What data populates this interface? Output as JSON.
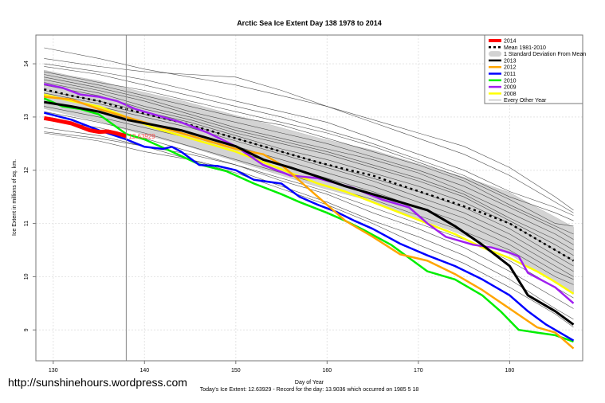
{
  "watermark": "http://sunshinehours.wordpress.com",
  "chart_data": {
    "type": "line",
    "title": "Arctic Sea Ice Extent Day 138 1978 to 2014",
    "xlabel": "Day of Year",
    "ylabel": "Ice Extent in millions of sq. km.",
    "footer": "Today's Ice Extent: 12.63929  - Record for the day: 13.9036 which occurred on 1985 5 18",
    "xlim": [
      128.1,
      188
    ],
    "ylim": [
      8.42,
      14.54
    ],
    "xticks": [
      "130",
      "140",
      "150",
      "160",
      "170",
      "180"
    ],
    "yticks": [
      "9",
      "10",
      "11",
      "12",
      "13",
      "14"
    ],
    "grid": true,
    "legend_position": "top-right",
    "current_day": 138,
    "current_value_label": "12.63929",
    "legend": [
      {
        "label": "2014",
        "color": "#ff0000",
        "style": "thick"
      },
      {
        "label": "Mean 1981-2010",
        "color": "#000000",
        "style": "dotted"
      },
      {
        "label": "1 Standard Deviation From Mean",
        "color": "#d3d3d3",
        "style": "band"
      },
      {
        "label": "2013",
        "color": "#000000",
        "style": "solid"
      },
      {
        "label": "2012",
        "color": "#ffa500",
        "style": "solid"
      },
      {
        "label": "2011",
        "color": "#0000ff",
        "style": "solid"
      },
      {
        "label": "2010",
        "color": "#00ee00",
        "style": "solid"
      },
      {
        "label": "2009",
        "color": "#a020f0",
        "style": "solid"
      },
      {
        "label": "2008",
        "color": "#ffff00",
        "style": "solid"
      },
      {
        "label": "Every Other Year",
        "color": "#555555",
        "style": "thin"
      }
    ],
    "mean": [
      [
        129,
        13.52
      ],
      [
        132,
        13.4
      ],
      [
        135,
        13.3
      ],
      [
        138,
        13.15
      ],
      [
        141,
        13.02
      ],
      [
        144,
        12.9
      ],
      [
        147,
        12.75
      ],
      [
        150,
        12.6
      ],
      [
        153,
        12.45
      ],
      [
        156,
        12.3
      ],
      [
        159,
        12.15
      ],
      [
        162,
        12.02
      ],
      [
        165,
        11.9
      ],
      [
        168,
        11.72
      ],
      [
        171,
        11.55
      ],
      [
        174,
        11.38
      ],
      [
        177,
        11.2
      ],
      [
        180,
        11.0
      ],
      [
        183,
        10.7
      ],
      [
        185,
        10.5
      ],
      [
        187,
        10.3
      ]
    ],
    "sd": [
      0.36,
      0.37,
      0.38,
      0.39,
      0.4,
      0.41,
      0.42,
      0.43,
      0.44,
      0.45,
      0.46,
      0.47,
      0.48,
      0.5,
      0.52,
      0.54,
      0.56,
      0.58,
      0.6,
      0.62,
      0.63
    ],
    "series": [
      {
        "name": "2008",
        "color": "#ffff00",
        "width": 2.5,
        "points": [
          [
            129,
            13.42
          ],
          [
            132,
            13.3
          ],
          [
            135,
            13.2
          ],
          [
            138,
            13.0
          ],
          [
            141,
            12.8
          ],
          [
            144,
            12.65
          ],
          [
            147,
            12.5
          ],
          [
            150,
            12.35
          ],
          [
            153,
            12.15
          ],
          [
            156,
            11.95
          ],
          [
            159,
            11.75
          ],
          [
            162,
            11.6
          ],
          [
            165,
            11.4
          ],
          [
            168,
            11.2
          ],
          [
            171,
            11.0
          ],
          [
            174,
            10.8
          ],
          [
            177,
            10.55
          ],
          [
            180,
            10.35
          ],
          [
            183,
            10.1
          ],
          [
            185,
            9.9
          ],
          [
            187,
            9.68
          ]
        ]
      },
      {
        "name": "2009",
        "color": "#a020f0",
        "width": 2.5,
        "points": [
          [
            129,
            13.62
          ],
          [
            131,
            13.55
          ],
          [
            133,
            13.42
          ],
          [
            135,
            13.38
          ],
          [
            137,
            13.3
          ],
          [
            139,
            13.15
          ],
          [
            141,
            13.05
          ],
          [
            144,
            12.9
          ],
          [
            147,
            12.7
          ],
          [
            150,
            12.45
          ],
          [
            153,
            12.1
          ],
          [
            156,
            11.9
          ],
          [
            159,
            11.85
          ],
          [
            163,
            11.66
          ],
          [
            166,
            11.45
          ],
          [
            169,
            11.3
          ],
          [
            171,
            11.0
          ],
          [
            173,
            10.75
          ],
          [
            176,
            10.6
          ],
          [
            178,
            10.55
          ],
          [
            180,
            10.45
          ],
          [
            181,
            10.38
          ],
          [
            182,
            10.07
          ],
          [
            185,
            9.8
          ],
          [
            187,
            9.5
          ]
        ]
      },
      {
        "name": "2010",
        "color": "#00ee00",
        "width": 2.5,
        "points": [
          [
            129,
            13.35
          ],
          [
            131,
            13.2
          ],
          [
            133,
            13.15
          ],
          [
            135,
            13.05
          ],
          [
            138,
            12.68
          ],
          [
            140,
            12.58
          ],
          [
            143,
            12.35
          ],
          [
            146,
            12.11
          ],
          [
            149,
            11.98
          ],
          [
            152,
            11.75
          ],
          [
            155,
            11.55
          ],
          [
            157,
            11.4
          ],
          [
            160,
            11.2
          ],
          [
            162,
            11.05
          ],
          [
            164,
            10.88
          ],
          [
            167,
            10.6
          ],
          [
            169,
            10.35
          ],
          [
            171,
            10.1
          ],
          [
            174,
            9.95
          ],
          [
            177,
            9.65
          ],
          [
            179,
            9.35
          ],
          [
            181,
            9.0
          ],
          [
            183,
            8.95
          ],
          [
            185,
            8.9
          ],
          [
            187,
            8.78
          ]
        ]
      },
      {
        "name": "2011",
        "color": "#0000ff",
        "width": 2.5,
        "points": [
          [
            129,
            13.08
          ],
          [
            132,
            12.95
          ],
          [
            135,
            12.75
          ],
          [
            138,
            12.58
          ],
          [
            140,
            12.44
          ],
          [
            142,
            12.4
          ],
          [
            143,
            12.44
          ],
          [
            144,
            12.35
          ],
          [
            146,
            12.1
          ],
          [
            148,
            12.08
          ],
          [
            150,
            12.0
          ],
          [
            152,
            11.82
          ],
          [
            155,
            11.75
          ],
          [
            157,
            11.5
          ],
          [
            159,
            11.35
          ],
          [
            161,
            11.22
          ],
          [
            163,
            11.05
          ],
          [
            165,
            10.9
          ],
          [
            168,
            10.62
          ],
          [
            171,
            10.4
          ],
          [
            174,
            10.2
          ],
          [
            177,
            9.95
          ],
          [
            180,
            9.65
          ],
          [
            182,
            9.35
          ],
          [
            184,
            9.1
          ],
          [
            187,
            8.8
          ]
        ]
      },
      {
        "name": "2012",
        "color": "#ffa500",
        "width": 2.5,
        "points": [
          [
            129,
            13.38
          ],
          [
            132,
            13.33
          ],
          [
            135,
            13.15
          ],
          [
            138,
            13.0
          ],
          [
            141,
            12.85
          ],
          [
            144,
            12.7
          ],
          [
            147,
            12.55
          ],
          [
            150,
            12.4
          ],
          [
            153,
            12.3
          ],
          [
            155,
            12.1
          ],
          [
            157,
            11.8
          ],
          [
            159,
            11.5
          ],
          [
            162,
            11.05
          ],
          [
            165,
            10.75
          ],
          [
            168,
            10.42
          ],
          [
            171,
            10.3
          ],
          [
            174,
            10.05
          ],
          [
            177,
            9.75
          ],
          [
            180,
            9.4
          ],
          [
            183,
            9.05
          ],
          [
            185,
            8.95
          ],
          [
            187,
            8.65
          ]
        ]
      },
      {
        "name": "2013",
        "color": "#000000",
        "width": 3,
        "points": [
          [
            129,
            13.28
          ],
          [
            132,
            13.2
          ],
          [
            135,
            13.1
          ],
          [
            138,
            12.95
          ],
          [
            141,
            12.85
          ],
          [
            144,
            12.75
          ],
          [
            147,
            12.6
          ],
          [
            150,
            12.45
          ],
          [
            153,
            12.2
          ],
          [
            156,
            12.05
          ],
          [
            159,
            11.88
          ],
          [
            162,
            11.7
          ],
          [
            165,
            11.55
          ],
          [
            168,
            11.4
          ],
          [
            171,
            11.25
          ],
          [
            174,
            10.95
          ],
          [
            177,
            10.6
          ],
          [
            180,
            10.2
          ],
          [
            182,
            9.65
          ],
          [
            185,
            9.35
          ],
          [
            187,
            9.1
          ]
        ]
      },
      {
        "name": "2014",
        "color": "#ff0000",
        "width": 5,
        "points": [
          [
            129,
            12.98
          ],
          [
            130,
            12.95
          ],
          [
            132,
            12.88
          ],
          [
            134,
            12.75
          ],
          [
            135,
            12.72
          ],
          [
            136,
            12.73
          ],
          [
            137,
            12.69
          ],
          [
            138,
            12.64
          ]
        ]
      }
    ],
    "other_years_days": [
      129,
      135,
      140,
      145,
      150,
      155,
      160,
      165,
      170,
      175,
      180,
      185,
      187
    ],
    "other_years": [
      [
        14.3,
        14.1,
        13.9,
        13.75,
        13.6,
        13.4,
        13.2,
        12.95,
        12.7,
        12.45,
        12.05,
        11.5,
        11.25
      ],
      [
        14.1,
        13.95,
        13.85,
        13.8,
        13.75,
        13.5,
        13.2,
        12.9,
        12.6,
        12.3,
        11.9,
        11.4,
        11.2
      ],
      [
        14.0,
        13.85,
        13.7,
        13.5,
        13.3,
        13.1,
        12.9,
        12.6,
        12.3,
        12.0,
        11.6,
        11.3,
        11.15
      ],
      [
        13.95,
        13.8,
        13.6,
        13.4,
        13.2,
        13.0,
        12.75,
        12.5,
        12.2,
        11.9,
        11.5,
        11.2,
        11.05
      ],
      [
        13.85,
        13.65,
        13.5,
        13.3,
        13.1,
        12.9,
        12.7,
        12.45,
        12.15,
        11.85,
        11.45,
        11.0,
        10.95
      ],
      [
        13.8,
        13.6,
        13.4,
        13.2,
        13.0,
        12.85,
        12.6,
        12.35,
        12.1,
        11.8,
        11.35,
        10.95,
        10.8
      ],
      [
        13.75,
        13.55,
        13.35,
        13.1,
        12.9,
        12.7,
        12.5,
        12.25,
        12.0,
        11.7,
        11.3,
        10.9,
        10.7
      ],
      [
        13.7,
        13.5,
        13.3,
        13.05,
        12.8,
        12.6,
        12.4,
        12.2,
        11.95,
        11.6,
        11.2,
        10.8,
        10.6
      ],
      [
        13.65,
        13.45,
        13.2,
        13.0,
        12.75,
        12.55,
        12.35,
        12.1,
        11.85,
        11.55,
        11.1,
        10.7,
        10.5
      ],
      [
        13.6,
        13.4,
        13.15,
        12.95,
        12.7,
        12.5,
        12.3,
        12.05,
        11.8,
        11.5,
        11.05,
        10.6,
        10.4
      ],
      [
        13.5,
        13.3,
        13.1,
        12.9,
        12.65,
        12.4,
        12.2,
        11.95,
        11.7,
        11.4,
        11.0,
        10.5,
        10.3
      ],
      [
        13.45,
        13.25,
        13.05,
        12.85,
        12.6,
        12.35,
        12.1,
        11.85,
        11.6,
        11.3,
        10.9,
        10.4,
        10.2
      ],
      [
        13.4,
        13.2,
        13.0,
        12.8,
        12.55,
        12.3,
        12.05,
        11.8,
        11.5,
        11.2,
        10.8,
        10.3,
        10.1
      ],
      [
        13.3,
        13.1,
        12.9,
        12.7,
        12.45,
        12.2,
        11.95,
        11.7,
        11.4,
        11.1,
        10.7,
        10.2,
        10.0
      ],
      [
        13.2,
        13.0,
        12.8,
        12.6,
        12.35,
        12.1,
        11.85,
        11.6,
        11.3,
        11.0,
        10.6,
        10.1,
        9.95
      ],
      [
        13.1,
        12.9,
        12.7,
        12.45,
        12.2,
        11.95,
        11.7,
        11.45,
        11.15,
        10.85,
        10.5,
        10.0,
        9.85
      ],
      [
        12.95,
        12.8,
        12.6,
        12.35,
        12.1,
        11.85,
        11.6,
        11.3,
        11.0,
        10.7,
        10.3,
        9.8,
        9.6
      ],
      [
        12.8,
        12.65,
        12.45,
        12.3,
        12.1,
        11.8,
        11.55,
        11.2,
        10.9,
        10.55,
        10.1,
        9.6,
        9.4
      ],
      [
        12.72,
        12.6,
        12.45,
        12.2,
        12.0,
        11.7,
        11.4,
        11.05,
        10.75,
        10.4,
        9.95,
        9.4,
        9.2
      ],
      [
        12.7,
        12.55,
        12.35,
        12.2,
        11.95,
        11.65,
        11.35,
        11.0,
        10.6,
        10.25,
        9.8,
        9.3,
        9.05
      ]
    ]
  }
}
